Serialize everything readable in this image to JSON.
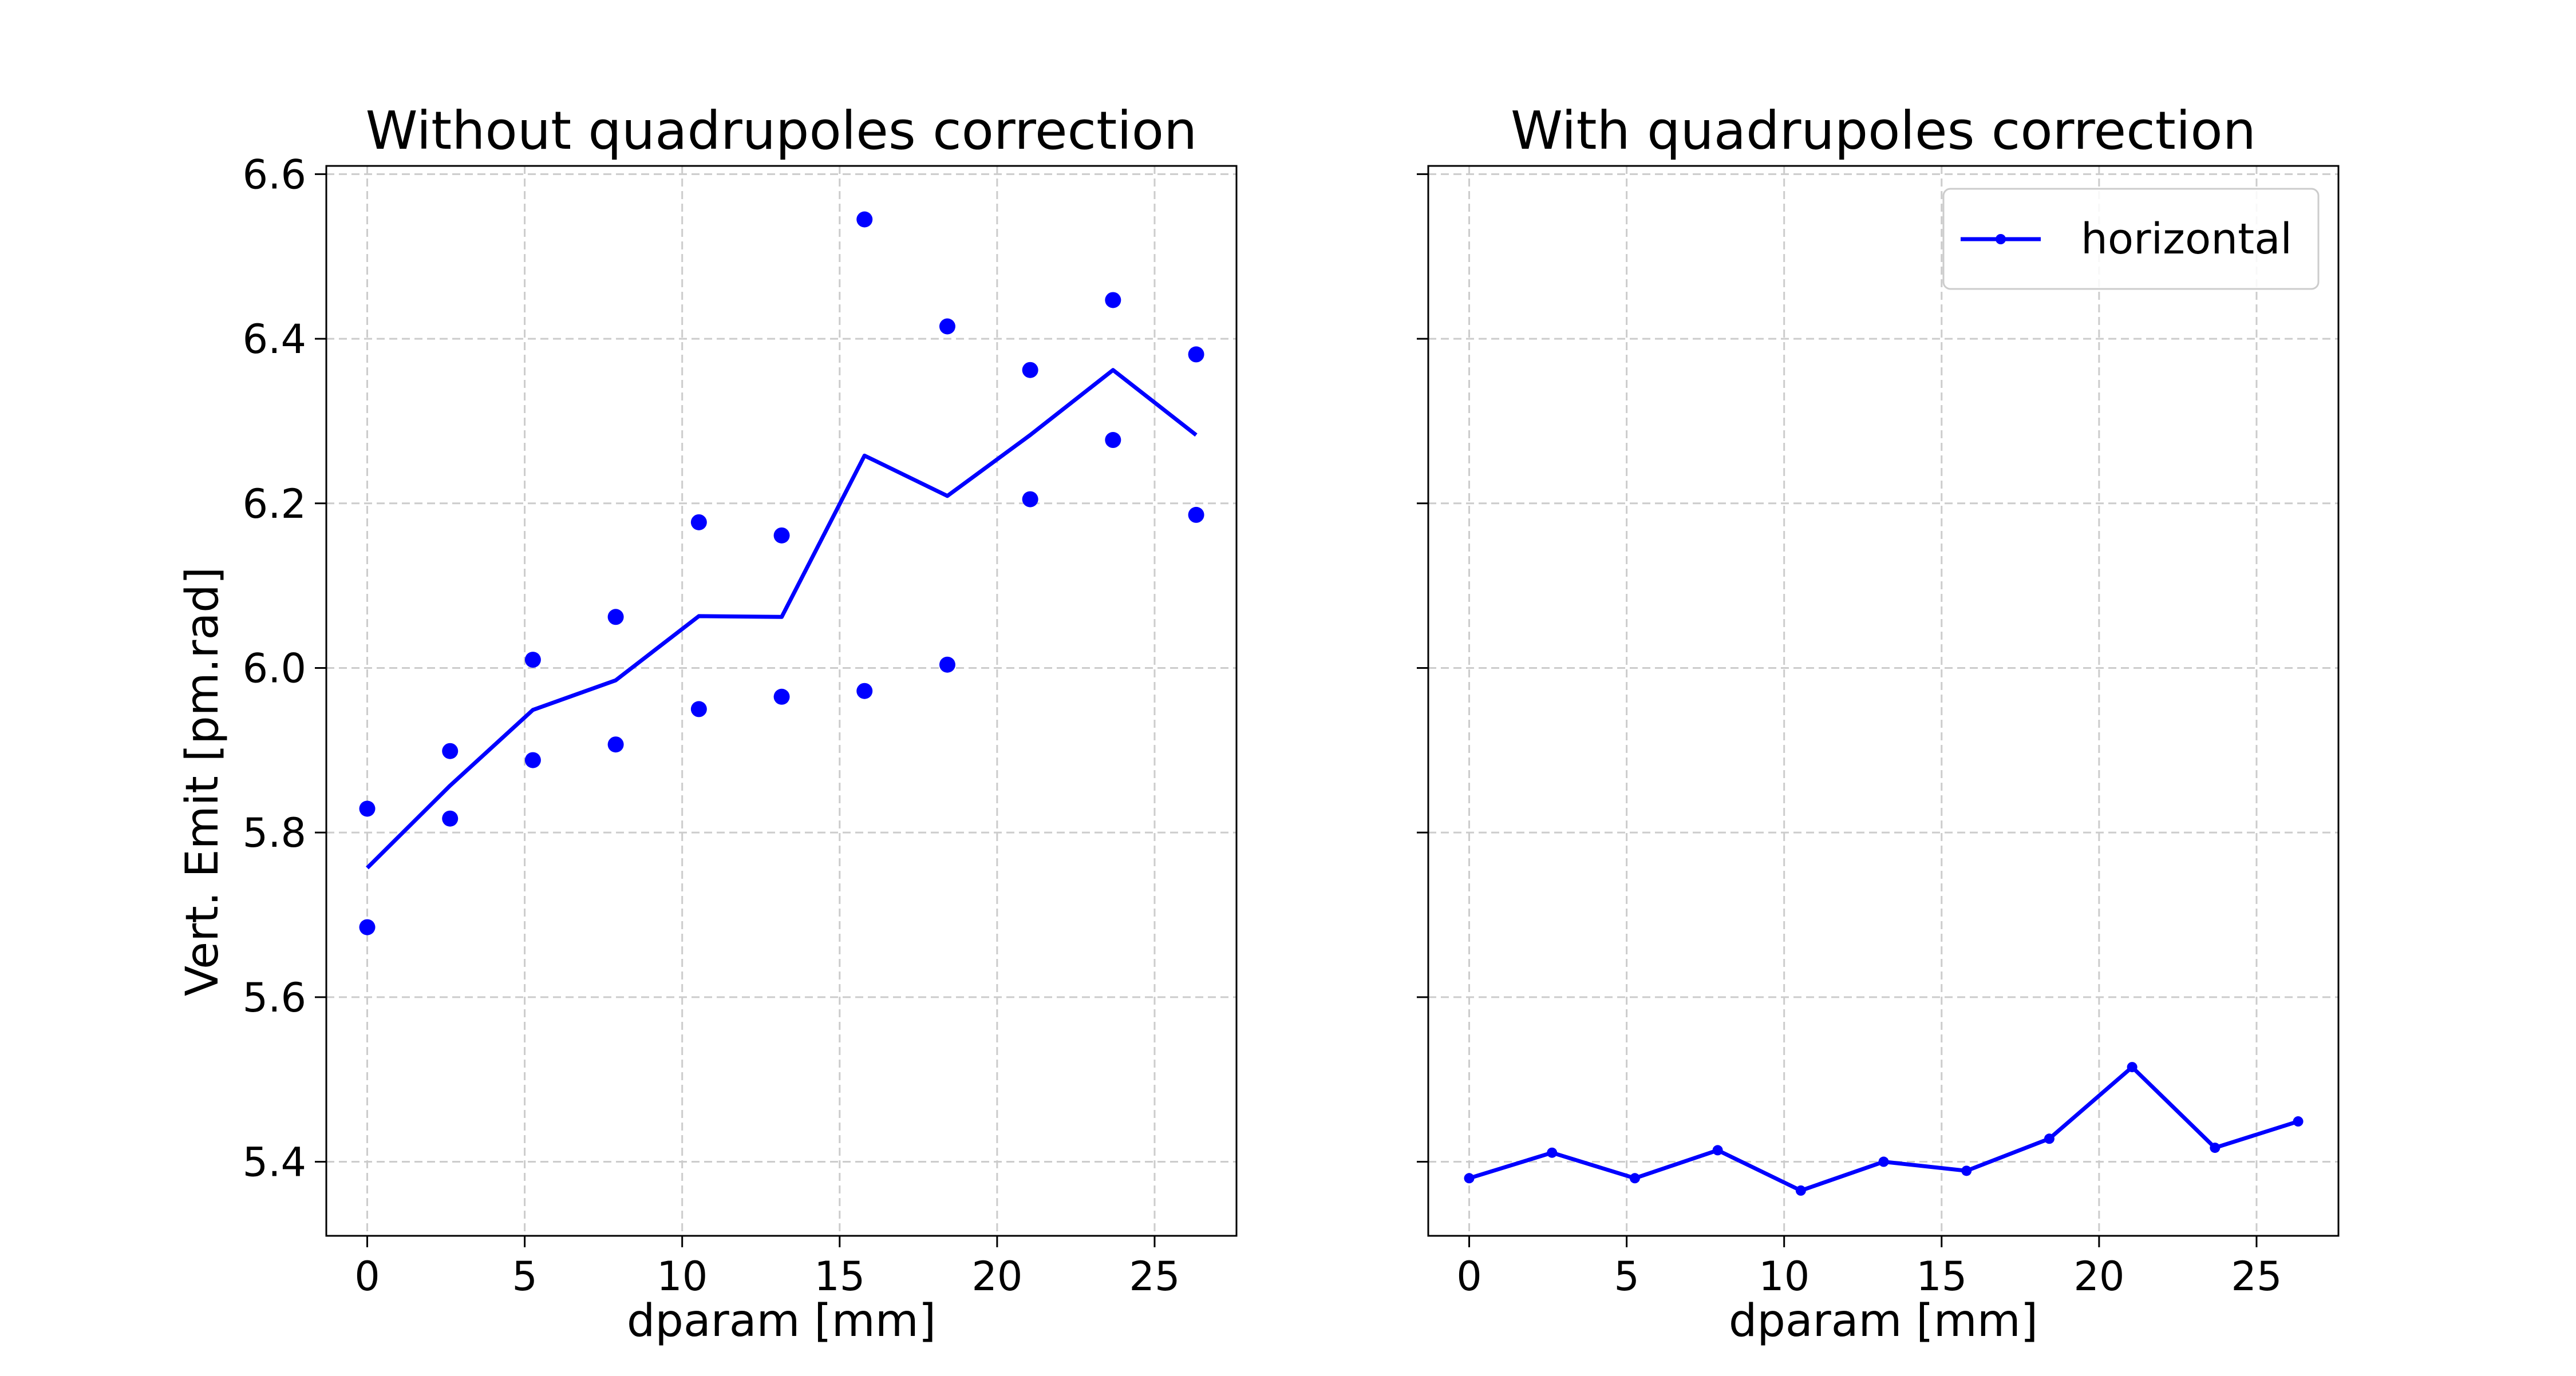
{
  "colors": {
    "series": "#0000ff",
    "grid": "#cccccc",
    "axes": "#000000",
    "background": "#ffffff"
  },
  "chart_data": [
    {
      "type": "line",
      "title": "Without quadrupoles correction",
      "xlabel": "dparam [mm]",
      "ylabel": "Vert. Emit [pm.rad]",
      "xlim": [
        -1.3,
        27.6
      ],
      "ylim": [
        5.31,
        6.61
      ],
      "xticks": [
        0,
        5,
        10,
        15,
        20,
        25
      ],
      "xtick_labels": [
        "0",
        "5",
        "10",
        "15",
        "20",
        "25"
      ],
      "yticks": [
        5.4,
        5.6,
        5.8,
        6.0,
        6.2,
        6.4,
        6.6
      ],
      "ytick_labels": [
        "5.4",
        "5.6",
        "5.8",
        "6.0",
        "6.2",
        "6.4",
        "6.6"
      ],
      "grid": true,
      "x": [
        0,
        2.63,
        5.26,
        7.89,
        10.53,
        13.16,
        15.79,
        18.42,
        21.05,
        23.68,
        26.32
      ],
      "series": [
        {
          "role": "mean line",
          "style": "line",
          "values": [
            5.757,
            5.857,
            5.949,
            5.985,
            6.063,
            6.062,
            6.258,
            6.209,
            6.283,
            6.362,
            6.283
          ]
        },
        {
          "role": "upper points",
          "style": "markers",
          "values": [
            5.829,
            5.899,
            6.01,
            6.062,
            6.177,
            6.161,
            6.545,
            6.415,
            6.362,
            6.447,
            6.381
          ]
        },
        {
          "role": "lower points",
          "style": "markers",
          "values": [
            5.685,
            5.817,
            5.888,
            5.907,
            5.95,
            5.965,
            5.972,
            6.004,
            6.205,
            6.277,
            6.186
          ]
        }
      ]
    },
    {
      "type": "line",
      "title": "With quadrupoles correction",
      "xlabel": "dparam [mm]",
      "ylabel": "",
      "xlim": [
        -1.3,
        27.6
      ],
      "ylim": [
        5.31,
        6.61
      ],
      "xticks": [
        0,
        5,
        10,
        15,
        20,
        25
      ],
      "xtick_labels": [
        "0",
        "5",
        "10",
        "15",
        "20",
        "25"
      ],
      "yticks": [
        5.4,
        5.6,
        5.8,
        6.0,
        6.2,
        6.4,
        6.6
      ],
      "grid": true,
      "legend_position": "top-right",
      "x": [
        0,
        2.63,
        5.26,
        7.89,
        10.53,
        13.16,
        15.79,
        18.42,
        21.05,
        23.68,
        26.32
      ],
      "series": [
        {
          "name": "horizontal",
          "style": "line with small markers",
          "values": [
            5.38,
            5.411,
            5.38,
            5.414,
            5.365,
            5.4,
            5.389,
            5.428,
            5.515,
            5.417,
            5.449
          ]
        }
      ]
    }
  ]
}
